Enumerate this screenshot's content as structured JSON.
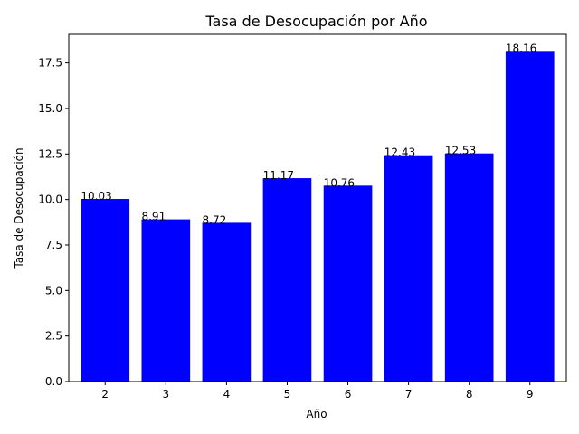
{
  "chart_data": {
    "type": "bar",
    "title": "Tasa de Desocupación por Año",
    "xlabel": "Año",
    "ylabel": "Tasa de Desocupación",
    "categories": [
      "2",
      "3",
      "4",
      "5",
      "6",
      "7",
      "8",
      "9"
    ],
    "values": [
      10.03,
      8.91,
      8.72,
      11.17,
      10.76,
      12.43,
      12.53,
      18.16
    ],
    "data_labels": [
      "10.03",
      "8.91",
      "8.72",
      "11.17",
      "10.76",
      "12.43",
      "12.53",
      "18.16"
    ],
    "ylim": [
      0,
      19.07
    ],
    "yticks": [
      0.0,
      2.5,
      5.0,
      7.5,
      10.0,
      12.5,
      15.0,
      17.5
    ],
    "ytick_labels": [
      "0.0",
      "2.5",
      "5.0",
      "7.5",
      "10.0",
      "12.5",
      "15.0",
      "17.5"
    ],
    "bar_color": "#0000ff",
    "grid": false,
    "legend": "none"
  }
}
